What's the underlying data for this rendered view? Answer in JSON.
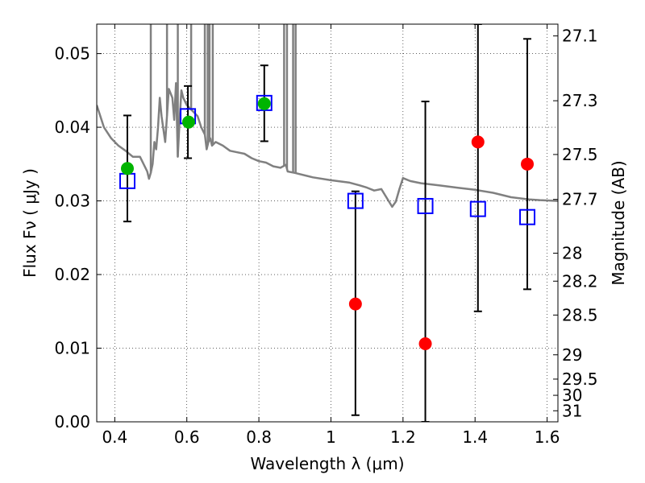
{
  "chart_data": {
    "type": "scatter",
    "title": "",
    "xlabel": "Wavelength  λ (μm)",
    "ylabel": "Flux  Fν  ( μJy )",
    "ylabel_right": "Magnitude (AB)",
    "xlim": [
      0.35,
      1.63
    ],
    "ylim": [
      0.0,
      0.054
    ],
    "grid": true,
    "grid_style": "dotted",
    "x_ticks": [
      0.4,
      0.6,
      0.8,
      1.0,
      1.2,
      1.4,
      1.6
    ],
    "x_tick_labels": [
      "0.4",
      "0.6",
      "0.8",
      "1",
      "1.2",
      "1.4",
      "1.6"
    ],
    "y_ticks": [
      0.0,
      0.01,
      0.02,
      0.03,
      0.04,
      0.05
    ],
    "y_tick_labels": [
      "0.00",
      "0.01",
      "0.02",
      "0.03",
      "0.04",
      "0.05"
    ],
    "right_axis": {
      "ticks": [
        {
          "label": "27.1",
          "flux": 0.0524
        },
        {
          "label": "27.3",
          "flux": 0.0436
        },
        {
          "label": "27.5",
          "flux": 0.0363
        },
        {
          "label": "27.7",
          "flux": 0.0302
        },
        {
          "label": "28",
          "flux": 0.0229
        },
        {
          "label": "28.2",
          "flux": 0.0191
        },
        {
          "label": "28.5",
          "flux": 0.0145
        },
        {
          "label": "29",
          "flux": 0.0091
        },
        {
          "label": "29.5",
          "flux": 0.0058
        },
        {
          "label": "30",
          "flux": 0.0036
        },
        {
          "label": "31",
          "flux": 0.0015
        }
      ]
    },
    "series": [
      {
        "kind": "line",
        "color": "#808080",
        "x": [
          0.35,
          0.37,
          0.39,
          0.41,
          0.43,
          0.45,
          0.47,
          0.49,
          0.495,
          0.5,
          0.505,
          0.51,
          0.515,
          0.52,
          0.525,
          0.53,
          0.54,
          0.55,
          0.56,
          0.565,
          0.57,
          0.575,
          0.58,
          0.585,
          0.59,
          0.6,
          0.61,
          0.62,
          0.63,
          0.64,
          0.65,
          0.655,
          0.66,
          0.665,
          0.67,
          0.68,
          0.7,
          0.72,
          0.74,
          0.76,
          0.78,
          0.8,
          0.82,
          0.84,
          0.86,
          0.875,
          0.88,
          0.9,
          0.95,
          1.0,
          1.05,
          1.08,
          1.1,
          1.12,
          1.14,
          1.16,
          1.17,
          1.18,
          1.19,
          1.2,
          1.22,
          1.25,
          1.3,
          1.35,
          1.4,
          1.45,
          1.5,
          1.55,
          1.58,
          1.63
        ],
        "y": [
          0.043,
          0.04,
          0.0385,
          0.0375,
          0.0368,
          0.036,
          0.036,
          0.034,
          0.033,
          0.0338,
          0.035,
          0.038,
          0.037,
          0.04,
          0.044,
          0.0415,
          0.038,
          0.0452,
          0.044,
          0.041,
          0.046,
          0.036,
          0.041,
          0.045,
          0.044,
          0.043,
          0.0425,
          0.042,
          0.0415,
          0.04,
          0.039,
          0.037,
          0.038,
          0.0385,
          0.0375,
          0.038,
          0.0375,
          0.0368,
          0.0366,
          0.0364,
          0.0358,
          0.0354,
          0.0352,
          0.0347,
          0.0345,
          0.0349,
          0.034,
          0.0338,
          0.0332,
          0.0328,
          0.0325,
          0.0321,
          0.0318,
          0.0314,
          0.0316,
          0.03,
          0.0292,
          0.0299,
          0.0316,
          0.0331,
          0.0327,
          0.0324,
          0.0321,
          0.0318,
          0.0315,
          0.0311,
          0.0305,
          0.0302,
          0.0301,
          0.03
        ],
        "spikes": [
          {
            "x": 0.5,
            "top": 0.054
          },
          {
            "x": 0.545,
            "top": 0.054
          },
          {
            "x": 0.575,
            "top": 0.054
          },
          {
            "x": 0.612,
            "top": 0.054
          },
          {
            "x": 0.65,
            "top": 0.054
          },
          {
            "x": 0.658,
            "top": 0.054
          },
          {
            "x": 0.663,
            "top": 0.054
          },
          {
            "x": 0.672,
            "top": 0.054
          },
          {
            "x": 0.87,
            "top": 0.054
          },
          {
            "x": 0.878,
            "top": 0.054
          },
          {
            "x": 0.895,
            "top": 0.054
          },
          {
            "x": 0.902,
            "top": 0.054
          }
        ]
      },
      {
        "kind": "errorbar",
        "color": "#000000",
        "points": [
          {
            "x": 0.435,
            "low": 0.0272,
            "high": 0.0416
          },
          {
            "x": 0.603,
            "low": 0.0358,
            "high": 0.0456
          },
          {
            "x": 0.815,
            "low": 0.0381,
            "high": 0.0484
          },
          {
            "x": 1.068,
            "low": 0.0009,
            "high": 0.0313
          },
          {
            "x": 1.262,
            "low": 0.0,
            "high": 0.0435
          },
          {
            "x": 1.408,
            "low": 0.015,
            "high": 0.054
          },
          {
            "x": 1.545,
            "low": 0.018,
            "high": 0.052
          }
        ]
      },
      {
        "kind": "open-square",
        "color": "#0000ff",
        "x": [
          0.435,
          0.603,
          0.815,
          1.068,
          1.262,
          1.408,
          1.545
        ],
        "y": [
          0.0327,
          0.0415,
          0.0433,
          0.03,
          0.0293,
          0.0289,
          0.0278
        ]
      },
      {
        "kind": "filled-circle",
        "color": "#00b400",
        "x": [
          0.435,
          0.605,
          0.815
        ],
        "y": [
          0.0344,
          0.0407,
          0.0432
        ]
      },
      {
        "kind": "filled-circle",
        "color": "#ff0000",
        "x": [
          1.068,
          1.262,
          1.408,
          1.545
        ],
        "y": [
          0.016,
          0.0106,
          0.038,
          0.035
        ]
      }
    ]
  }
}
